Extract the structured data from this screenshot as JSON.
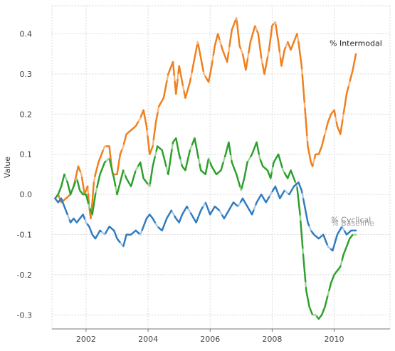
{
  "chart_data": {
    "type": "line",
    "title": "",
    "xlabel": "",
    "ylabel": "Value",
    "xlim": [
      2000.9,
      2011.8
    ],
    "ylim": [
      -0.335,
      0.47
    ],
    "grid": true,
    "x_ticks": [
      2002,
      2004,
      2006,
      2008,
      2010
    ],
    "x_tick_labels": [
      "2002",
      "2004",
      "2006",
      "2008",
      "2010"
    ],
    "y_ticks": [
      -0.3,
      -0.2,
      -0.1,
      0.0,
      0.1,
      0.2,
      0.3,
      0.4
    ],
    "y_tick_labels": [
      "-0.3",
      "-0.2",
      "-0.1",
      "0.0",
      "0.1",
      "0.2",
      "0.3",
      "0.4"
    ],
    "annotations": [
      "% Intermodal",
      "% Cyclical",
      "% Baseline"
    ],
    "colors": {
      "intermodal": "#f07f1e",
      "intermodal_light": "#f6b987",
      "cyclical": "#2ca02c",
      "cyclical_light": "#9fd39a",
      "baseline": "#2f7bbf",
      "baseline_light": "#a9c9e6"
    },
    "series": [
      {
        "name": "% Intermodal",
        "color": "#f07f1e",
        "x": [
          2001.0,
          2001.1,
          2001.2,
          2001.35,
          2001.5,
          2001.6,
          2001.75,
          2001.85,
          2001.95,
          2002.05,
          2002.1,
          2002.15,
          2002.2,
          2002.25,
          2002.3,
          2002.4,
          2002.5,
          2002.6,
          2002.75,
          2002.85,
          2003.0,
          2003.1,
          2003.2,
          2003.3,
          2003.45,
          2003.6,
          2003.75,
          2003.85,
          2003.95,
          2004.05,
          2004.15,
          2004.25,
          2004.35,
          2004.5,
          2004.65,
          2004.8,
          2004.9,
          2005.0,
          2005.1,
          2005.2,
          2005.35,
          2005.5,
          2005.6,
          2005.7,
          2005.8,
          2005.95,
          2006.05,
          2006.15,
          2006.25,
          2006.4,
          2006.55,
          2006.7,
          2006.85,
          2006.95,
          2007.05,
          2007.15,
          2007.3,
          2007.45,
          2007.55,
          2007.65,
          2007.75,
          2007.9,
          2008.0,
          2008.1,
          2008.2,
          2008.3,
          2008.4,
          2008.5,
          2008.6,
          2008.7,
          2008.8,
          2008.85,
          2008.95,
          2009.05,
          2009.15,
          2009.25,
          2009.3,
          2009.4,
          2009.5,
          2009.6,
          2009.7,
          2009.8,
          2009.9,
          2010.0,
          2010.1,
          2010.2,
          2010.3,
          2010.4,
          2010.5,
          2010.6,
          2010.7
        ],
        "y": [
          -0.01,
          0.0,
          -0.02,
          -0.01,
          0.0,
          0.02,
          0.07,
          0.05,
          0.0,
          0.02,
          -0.03,
          -0.06,
          -0.02,
          0.03,
          0.05,
          0.08,
          0.1,
          0.12,
          0.12,
          0.05,
          0.05,
          0.1,
          0.12,
          0.15,
          0.16,
          0.17,
          0.19,
          0.21,
          0.17,
          0.1,
          0.12,
          0.18,
          0.22,
          0.24,
          0.3,
          0.33,
          0.25,
          0.32,
          0.28,
          0.24,
          0.28,
          0.34,
          0.38,
          0.34,
          0.3,
          0.28,
          0.32,
          0.37,
          0.4,
          0.36,
          0.33,
          0.41,
          0.44,
          0.37,
          0.35,
          0.31,
          0.38,
          0.42,
          0.4,
          0.34,
          0.3,
          0.36,
          0.42,
          0.43,
          0.38,
          0.32,
          0.36,
          0.38,
          0.36,
          0.38,
          0.4,
          0.38,
          0.32,
          0.22,
          0.12,
          0.08,
          0.07,
          0.1,
          0.1,
          0.12,
          0.15,
          0.18,
          0.2,
          0.21,
          0.17,
          0.15,
          0.2,
          0.25,
          0.28,
          0.31,
          0.35
        ]
      },
      {
        "name": "% Cyclical",
        "color": "#2ca02c",
        "x": [
          2001.0,
          2001.1,
          2001.2,
          2001.3,
          2001.4,
          2001.5,
          2001.6,
          2001.7,
          2001.8,
          2001.9,
          2002.0,
          2002.1,
          2002.2,
          2002.3,
          2002.45,
          2002.6,
          2002.75,
          2002.9,
          2003.0,
          2003.1,
          2003.2,
          2003.3,
          2003.45,
          2003.6,
          2003.75,
          2003.85,
          2003.95,
          2004.05,
          2004.15,
          2004.3,
          2004.45,
          2004.55,
          2004.65,
          2004.8,
          2004.9,
          2005.0,
          2005.1,
          2005.2,
          2005.35,
          2005.5,
          2005.6,
          2005.7,
          2005.85,
          2005.95,
          2006.05,
          2006.2,
          2006.35,
          2006.5,
          2006.6,
          2006.7,
          2006.85,
          2007.0,
          2007.1,
          2007.2,
          2007.35,
          2007.5,
          2007.6,
          2007.7,
          2007.85,
          2007.95,
          2008.05,
          2008.2,
          2008.35,
          2008.5,
          2008.6,
          2008.7,
          2008.8,
          2008.9,
          2009.0,
          2009.1,
          2009.2,
          2009.3,
          2009.4,
          2009.5,
          2009.6,
          2009.7,
          2009.8,
          2009.9,
          2010.0,
          2010.1,
          2010.2,
          2010.3,
          2010.4,
          2010.5,
          2010.6,
          2010.7
        ],
        "y": [
          -0.01,
          0.0,
          0.02,
          0.05,
          0.03,
          0.0,
          0.02,
          0.04,
          0.01,
          0.0,
          0.0,
          -0.03,
          -0.05,
          0.0,
          0.05,
          0.08,
          0.09,
          0.04,
          0.0,
          0.03,
          0.06,
          0.04,
          0.02,
          0.06,
          0.08,
          0.04,
          0.03,
          0.02,
          0.07,
          0.12,
          0.11,
          0.08,
          0.05,
          0.13,
          0.14,
          0.1,
          0.07,
          0.06,
          0.11,
          0.14,
          0.1,
          0.06,
          0.05,
          0.09,
          0.07,
          0.05,
          0.06,
          0.1,
          0.13,
          0.08,
          0.05,
          0.01,
          0.04,
          0.08,
          0.1,
          0.13,
          0.09,
          0.07,
          0.06,
          0.04,
          0.08,
          0.1,
          0.06,
          0.04,
          0.06,
          0.04,
          0.02,
          -0.05,
          -0.15,
          -0.24,
          -0.28,
          -0.3,
          -0.3,
          -0.31,
          -0.3,
          -0.28,
          -0.25,
          -0.22,
          -0.2,
          -0.19,
          -0.18,
          -0.15,
          -0.13,
          -0.11,
          -0.1,
          -0.1
        ]
      },
      {
        "name": "% Baseline",
        "color": "#2f7bbf",
        "x": [
          2001.0,
          2001.1,
          2001.2,
          2001.3,
          2001.4,
          2001.5,
          2001.6,
          2001.7,
          2001.8,
          2001.9,
          2002.0,
          2002.1,
          2002.2,
          2002.3,
          2002.45,
          2002.6,
          2002.75,
          2002.9,
          2003.0,
          2003.1,
          2003.2,
          2003.3,
          2003.45,
          2003.6,
          2003.75,
          2003.85,
          2003.95,
          2004.05,
          2004.15,
          2004.3,
          2004.45,
          2004.6,
          2004.75,
          2004.9,
          2005.0,
          2005.1,
          2005.25,
          2005.4,
          2005.55,
          2005.7,
          2005.85,
          2006.0,
          2006.15,
          2006.3,
          2006.45,
          2006.6,
          2006.75,
          2006.9,
          2007.05,
          2007.2,
          2007.35,
          2007.5,
          2007.65,
          2007.8,
          2007.95,
          2008.1,
          2008.25,
          2008.4,
          2008.55,
          2008.7,
          2008.85,
          2008.95,
          2009.05,
          2009.15,
          2009.25,
          2009.35,
          2009.5,
          2009.65,
          2009.8,
          2009.95,
          2010.1,
          2010.25,
          2010.4,
          2010.55,
          2010.7
        ],
        "y": [
          -0.01,
          -0.02,
          -0.01,
          -0.03,
          -0.05,
          -0.07,
          -0.06,
          -0.07,
          -0.06,
          -0.05,
          -0.07,
          -0.08,
          -0.1,
          -0.11,
          -0.09,
          -0.1,
          -0.08,
          -0.09,
          -0.11,
          -0.12,
          -0.13,
          -0.1,
          -0.1,
          -0.09,
          -0.1,
          -0.08,
          -0.06,
          -0.05,
          -0.06,
          -0.08,
          -0.09,
          -0.06,
          -0.04,
          -0.06,
          -0.07,
          -0.05,
          -0.03,
          -0.05,
          -0.07,
          -0.04,
          -0.02,
          -0.05,
          -0.03,
          -0.04,
          -0.06,
          -0.04,
          -0.02,
          -0.03,
          -0.01,
          -0.03,
          -0.05,
          -0.02,
          0.0,
          -0.02,
          0.0,
          0.02,
          -0.01,
          0.01,
          0.0,
          0.02,
          0.03,
          0.01,
          -0.03,
          -0.07,
          -0.09,
          -0.1,
          -0.11,
          -0.1,
          -0.13,
          -0.14,
          -0.1,
          -0.08,
          -0.1,
          -0.09,
          -0.09
        ]
      }
    ]
  }
}
